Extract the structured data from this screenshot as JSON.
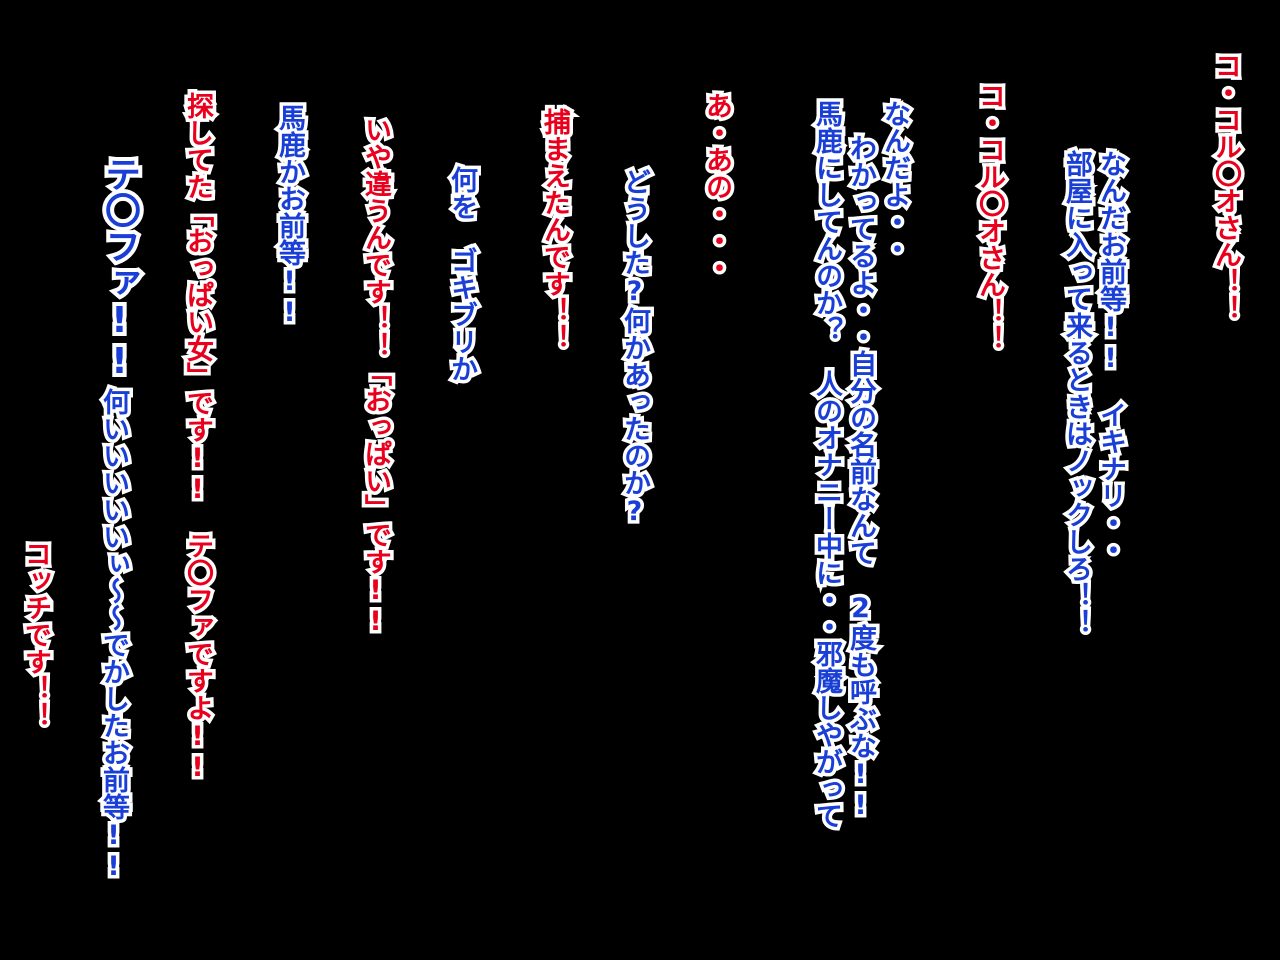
{
  "colors": {
    "background": "#000000",
    "speaker_red": "#e8001c",
    "speaker_blue": "#1a3fd6",
    "outline": "#ffffff"
  },
  "lines": {
    "l1": "コ・コル〇オさん！！",
    "l2": "なんだお前等!!　イキナリ・・",
    "l3": "部屋に入って来るときはノックしろ！！",
    "l4": "コ・コル〇オさん！！",
    "l5": "なんだよ・・",
    "l6": "わかってるよ・・自分の名前なんて　2度も呼ぶな!!",
    "l7": "馬鹿にしてんのか？　人のオナニー中に・・邪魔しやがって",
    "l8": "あ・あの・・・",
    "l9": "どうした?何かあったのか?",
    "l10": "捕まえたんです！！",
    "l11": "何を　ゴキブリか",
    "l12": "いや違うんです！！「おっぱい」です!!",
    "l13": "馬鹿かお前等!!",
    "l14": "探してた「おっぱい女」です!!　テ〇ファですよ!!",
    "l15": "テ〇ファ!!",
    "l16": "何いいいいいぃ～～でかしたお前等!!",
    "l17": "コッチです！！"
  }
}
